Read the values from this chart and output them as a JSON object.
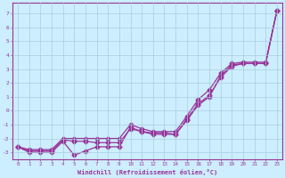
{
  "xlabel": "Windchill (Refroidissement éolien,°C)",
  "background_color": "#cceeff",
  "grid_color": "#aaccdd",
  "line_color": "#993399",
  "x_values": [
    0,
    1,
    2,
    3,
    4,
    5,
    6,
    7,
    8,
    9,
    10,
    11,
    12,
    13,
    14,
    15,
    16,
    17,
    18,
    19,
    20,
    21,
    22,
    23
  ],
  "line1": [
    -2.6,
    -3.0,
    -3.0,
    -3.0,
    -2.2,
    -3.2,
    -2.9,
    -2.6,
    -2.6,
    -2.6,
    -1.2,
    -1.5,
    -1.7,
    -1.7,
    -1.7,
    -0.7,
    0.4,
    1.0,
    2.5,
    3.3,
    3.4,
    3.4,
    3.4,
    7.2
  ],
  "line2": [
    -2.6,
    -2.9,
    -2.9,
    -2.9,
    -2.1,
    -2.2,
    -2.2,
    -2.3,
    -2.3,
    -2.3,
    -1.3,
    -1.5,
    -1.6,
    -1.6,
    -1.7,
    -0.6,
    0.5,
    1.1,
    2.4,
    3.2,
    3.4,
    3.4,
    3.4,
    7.2
  ],
  "line3": [
    -2.6,
    -2.8,
    -2.8,
    -2.8,
    -2.0,
    -2.0,
    -2.0,
    -2.0,
    -2.0,
    -2.0,
    -1.0,
    -1.3,
    -1.5,
    -1.5,
    -1.5,
    -0.4,
    0.8,
    1.5,
    2.7,
    3.4,
    3.5,
    3.5,
    3.5,
    7.2
  ],
  "ylim": [
    -3.5,
    7.8
  ],
  "xlim": [
    -0.5,
    23.5
  ],
  "yticks": [
    -3,
    -2,
    -1,
    0,
    1,
    2,
    3,
    4,
    5,
    6,
    7
  ],
  "xticks": [
    0,
    1,
    2,
    3,
    4,
    5,
    6,
    7,
    8,
    9,
    10,
    11,
    12,
    13,
    14,
    15,
    16,
    17,
    18,
    19,
    20,
    21,
    22,
    23
  ],
  "figsize": [
    3.2,
    2.0
  ],
  "dpi": 100
}
